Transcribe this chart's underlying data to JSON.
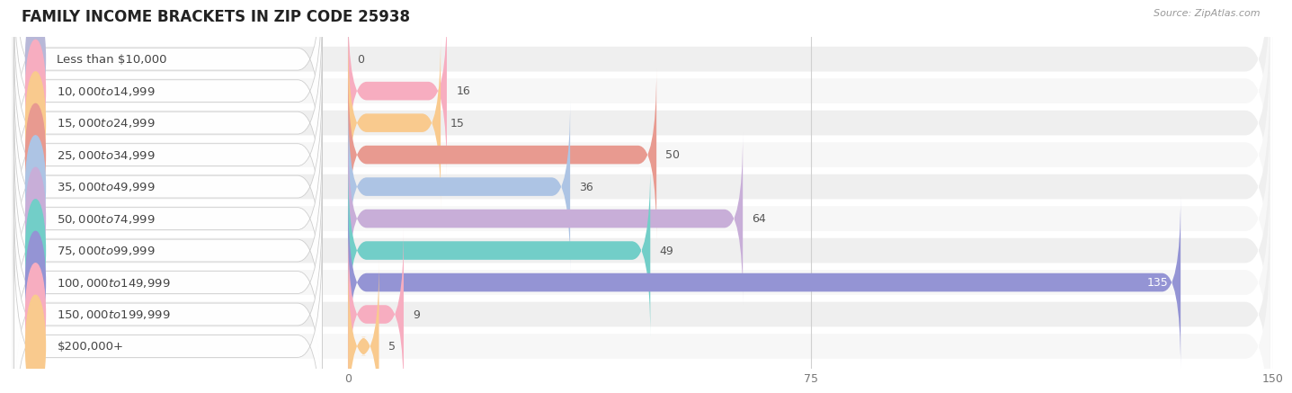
{
  "title": "FAMILY INCOME BRACKETS IN ZIP CODE 25938",
  "source_text": "Source: ZipAtlas.com",
  "categories": [
    "Less than $10,000",
    "$10,000 to $14,999",
    "$15,000 to $24,999",
    "$25,000 to $34,999",
    "$35,000 to $49,999",
    "$50,000 to $74,999",
    "$75,000 to $99,999",
    "$100,000 to $149,999",
    "$150,000 to $199,999",
    "$200,000+"
  ],
  "values": [
    0,
    16,
    15,
    50,
    36,
    64,
    49,
    135,
    9,
    5
  ],
  "bar_colors": [
    "#b8b8d8",
    "#f7adc0",
    "#f9ca8e",
    "#e89a90",
    "#adc4e4",
    "#c8aed8",
    "#72cec8",
    "#9494d4",
    "#f7adc0",
    "#f9ca8e"
  ],
  "row_bg_even": "#efefef",
  "row_bg_odd": "#f7f7f7",
  "xlim_data": [
    0,
    150
  ],
  "xticks": [
    0,
    75,
    150
  ],
  "background_color": "#ffffff",
  "title_fontsize": 12,
  "label_fontsize": 9.5,
  "value_fontsize": 9,
  "grid_color": "#d0d0d0",
  "label_box_color": "#ffffff",
  "label_box_edge": "#cccccc",
  "text_color": "#444444",
  "source_color": "#999999",
  "value_on_bar_color": "#ffffff",
  "value_off_bar_color": "#555555"
}
